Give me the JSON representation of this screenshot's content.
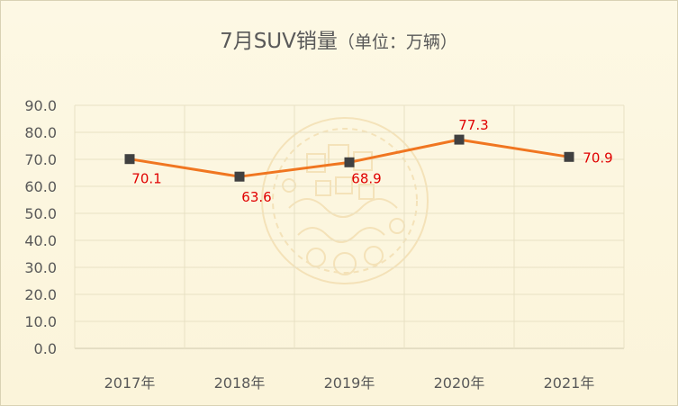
{
  "chart_data": {
    "type": "line",
    "title": "7月SUV销量",
    "title_unit": "（单位：万辆）",
    "categories": [
      "2017年",
      "2018年",
      "2019年",
      "2020年",
      "2021年"
    ],
    "series": [
      {
        "values": [
          70.1,
          63.6,
          68.9,
          77.3,
          70.9
        ],
        "data_labels": [
          "70.1",
          "63.6",
          "68.9",
          "77.3",
          "70.9"
        ]
      }
    ],
    "y_ticks": [
      "0.0",
      "10.0",
      "20.0",
      "30.0",
      "40.0",
      "50.0",
      "60.0",
      "70.0",
      "80.0",
      "90.0"
    ],
    "ylim": [
      0,
      90
    ],
    "grid": true,
    "legend": "none"
  },
  "colors": {
    "line": "#F07621",
    "marker": "#404040",
    "data_label": "#E00000",
    "background": "#FCF6DF",
    "watermark": "#EBCB8C"
  },
  "watermark_icon": "ornamental-medallion-icon"
}
